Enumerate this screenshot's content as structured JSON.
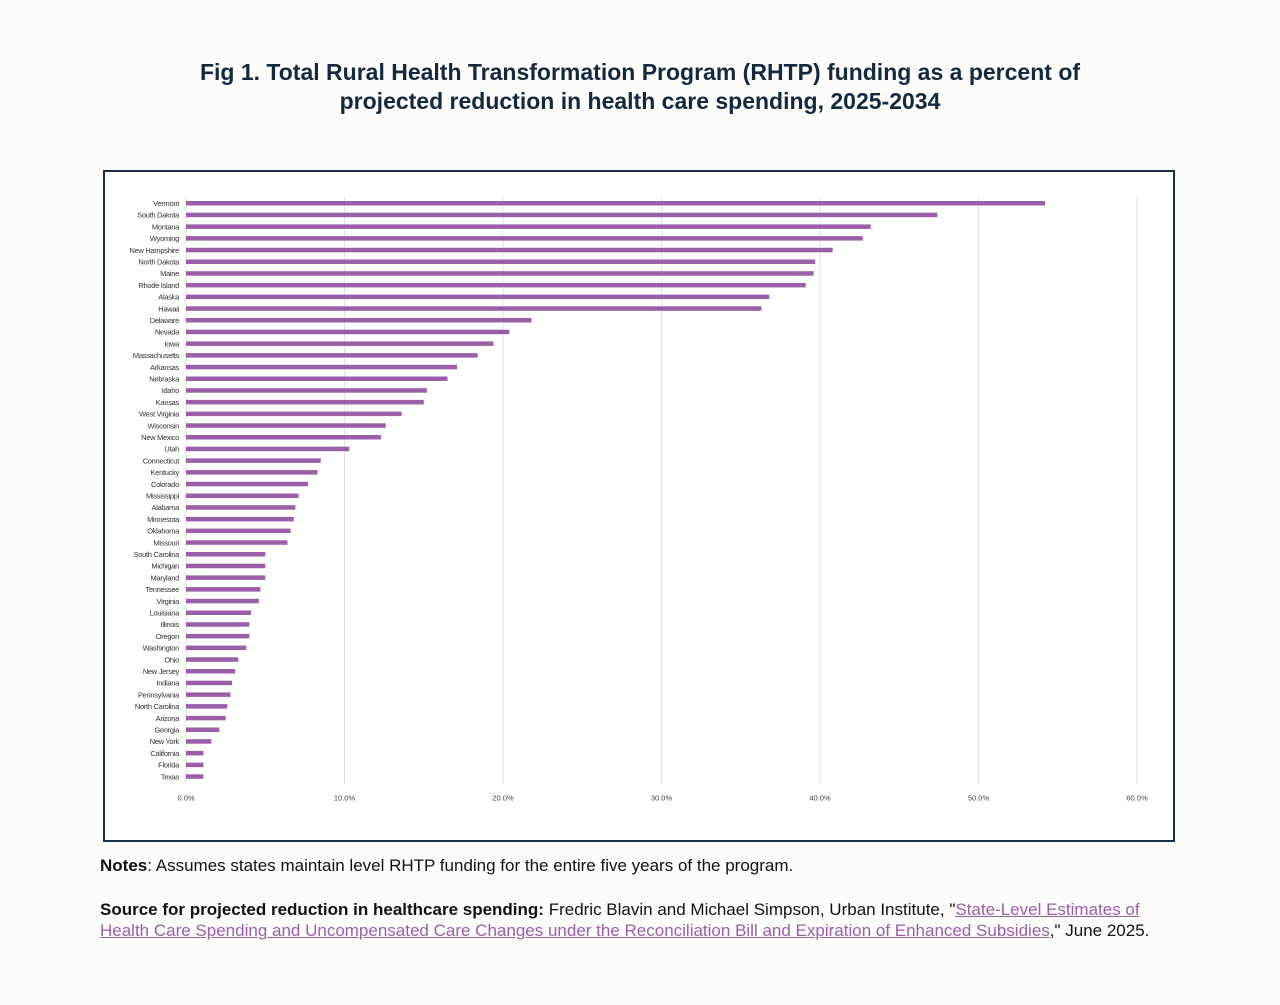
{
  "title_line1": "Fig 1. Total Rural Health Transformation Program (RHTP) funding as a percent of",
  "title_line2": "projected reduction in health care spending, 2025-2034",
  "chart_data": {
    "type": "bar",
    "orientation": "horizontal",
    "title": "Fig 1. Total Rural Health Transformation Program (RHTP) funding as a percent of projected reduction in health care spending, 2025-2034",
    "categories": [
      "Vermont",
      "South Dakota",
      "Montana",
      "Wyoming",
      "New Hampshire",
      "North Dakota",
      "Maine",
      "Rhode Island",
      "Alaska",
      "Hawaii",
      "Delaware",
      "Nevada",
      "Iowa",
      "Massachusetts",
      "Arkansas",
      "Nebraska",
      "Idaho",
      "Kansas",
      "West Virginia",
      "Wisconsin",
      "New Mexico",
      "Utah",
      "Connecticut",
      "Kentucky",
      "Colorado",
      "Mississippi",
      "Alabama",
      "Minnesota",
      "Oklahoma",
      "Missouri",
      "South Carolina",
      "Michigan",
      "Maryland",
      "Tennessee",
      "Virginia",
      "Louisiana",
      "Illinois",
      "Oregon",
      "Washington",
      "Ohio",
      "New Jersey",
      "Indiana",
      "Pennsylvania",
      "North Carolina",
      "Arizona",
      "Georgia",
      "New York",
      "California",
      "Florida",
      "Texas"
    ],
    "values": [
      54.2,
      47.4,
      43.2,
      42.7,
      40.8,
      39.7,
      39.6,
      39.1,
      36.8,
      36.3,
      21.8,
      20.4,
      19.4,
      18.4,
      17.1,
      16.5,
      15.2,
      15.0,
      13.6,
      12.6,
      12.3,
      10.3,
      8.5,
      8.3,
      7.7,
      7.1,
      6.9,
      6.8,
      6.6,
      6.4,
      5.0,
      5.0,
      5.0,
      4.7,
      4.6,
      4.1,
      4.0,
      4.0,
      3.8,
      3.3,
      3.1,
      2.9,
      2.8,
      2.6,
      2.5,
      2.1,
      1.6,
      1.1,
      1.1,
      1.1
    ],
    "xlim": [
      0,
      60
    ],
    "xticks": [
      "0.0%",
      "10.0%",
      "20.0%",
      "30.0%",
      "40.0%",
      "50.0%",
      "60.0%"
    ],
    "grid": "vertical",
    "bar_color": "#9b5fa8",
    "grid_color": "#e2e2e2",
    "frame_color": "#1b2f45"
  },
  "notes": {
    "label": "Notes",
    "text": ": Assumes states maintain level RHTP funding for the entire five years of the program."
  },
  "source": {
    "label": "Source for projected reduction in healthcare spending:",
    "text_before": " Fredric Blavin and Michael Simpson, Urban Institute, \"",
    "link": "State-Level Estimates of Health Care Spending and Uncompensated Care Changes under the Reconciliation Bill and Expiration of Enhanced Subsidies",
    "text_after": ",\" June 2025."
  }
}
